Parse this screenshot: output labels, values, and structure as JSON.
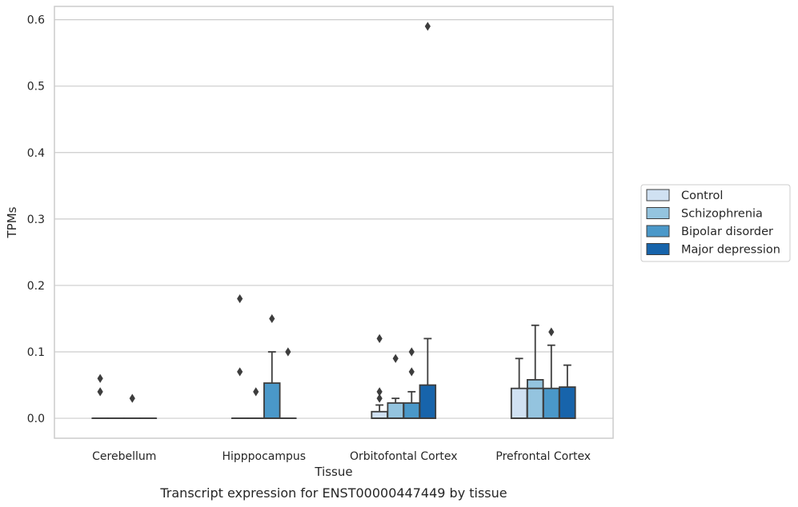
{
  "chart_data": {
    "type": "box",
    "xlabel": "Tissue",
    "ylabel": "TPMs",
    "caption": "Transcript expression for ENST00000447449 by tissue",
    "ylim": [
      -0.03,
      0.62
    ],
    "yticks": [
      "0.0",
      "0.1",
      "0.2",
      "0.3",
      "0.4",
      "0.5",
      "0.6"
    ],
    "ytick_values": [
      0,
      0.1,
      0.2,
      0.3,
      0.4,
      0.5,
      0.6
    ],
    "grid": "horizontal",
    "legend_position": "right",
    "categories": [
      "Cerebellum",
      "Hipppocampus",
      "Orbitofontal Cortex",
      "Prefrontal Cortex"
    ],
    "series": [
      {
        "name": "Control",
        "color": "#d0e1f2",
        "boxes": [
          {
            "q1": 0,
            "median": 0,
            "q3": 0,
            "whisker_low": 0,
            "whisker_high": 0,
            "outliers": [
              0.04,
              0.06
            ]
          },
          {
            "q1": 0,
            "median": 0,
            "q3": 0,
            "whisker_low": 0,
            "whisker_high": 0,
            "outliers": [
              0.07,
              0.18
            ]
          },
          {
            "q1": 0,
            "median": 0,
            "q3": 0.01,
            "whisker_low": 0,
            "whisker_high": 0.02,
            "outliers": [
              0.03,
              0.04,
              0.12
            ]
          },
          {
            "q1": 0,
            "median": 0,
            "q3": 0.045,
            "whisker_low": 0,
            "whisker_high": 0.09,
            "outliers": []
          }
        ]
      },
      {
        "name": "Schizophrenia",
        "color": "#94c4df",
        "boxes": [
          {
            "q1": 0,
            "median": 0,
            "q3": 0,
            "whisker_low": 0,
            "whisker_high": 0,
            "outliers": []
          },
          {
            "q1": 0,
            "median": 0,
            "q3": 0,
            "whisker_low": 0,
            "whisker_high": 0,
            "outliers": [
              0.04
            ]
          },
          {
            "q1": 0,
            "median": 0,
            "q3": 0.023,
            "whisker_low": 0,
            "whisker_high": 0.03,
            "outliers": [
              0.09
            ]
          },
          {
            "q1": 0,
            "median": 0.045,
            "q3": 0.058,
            "whisker_low": 0,
            "whisker_high": 0.14,
            "outliers": []
          }
        ]
      },
      {
        "name": "Bipolar disorder",
        "color": "#4a98c9",
        "boxes": [
          {
            "q1": 0,
            "median": 0,
            "q3": 0,
            "whisker_low": 0,
            "whisker_high": 0,
            "outliers": [
              0.03
            ]
          },
          {
            "q1": 0,
            "median": 0,
            "q3": 0.053,
            "whisker_low": 0,
            "whisker_high": 0.1,
            "outliers": [
              0.15
            ]
          },
          {
            "q1": 0,
            "median": 0,
            "q3": 0.023,
            "whisker_low": 0,
            "whisker_high": 0.04,
            "outliers": [
              0.07,
              0.1
            ]
          },
          {
            "q1": 0,
            "median": 0,
            "q3": 0.045,
            "whisker_low": 0,
            "whisker_high": 0.11,
            "outliers": [
              0.13
            ]
          }
        ]
      },
      {
        "name": "Major depression",
        "color": "#1764ab",
        "boxes": [
          {
            "q1": 0,
            "median": 0,
            "q3": 0,
            "whisker_low": 0,
            "whisker_high": 0,
            "outliers": []
          },
          {
            "q1": 0,
            "median": 0,
            "q3": 0,
            "whisker_low": 0,
            "whisker_high": 0,
            "outliers": [
              0.1
            ]
          },
          {
            "q1": 0,
            "median": 0,
            "q3": 0.05,
            "whisker_low": 0,
            "whisker_high": 0.12,
            "outliers": [
              0.59
            ]
          },
          {
            "q1": 0,
            "median": 0,
            "q3": 0.047,
            "whisker_low": 0,
            "whisker_high": 0.08,
            "outliers": []
          }
        ]
      }
    ]
  }
}
